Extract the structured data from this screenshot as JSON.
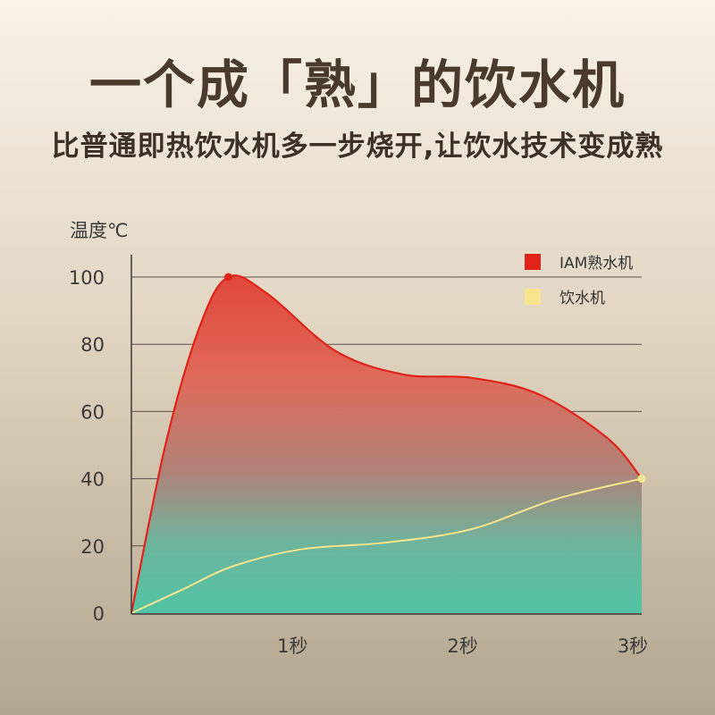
{
  "title": "一个成「熟」的饮水机",
  "subtitle": "比普通即热饮水机多一步烧开,让饮水技术变成熟",
  "chart_data": {
    "type": "area",
    "ylabel": "温度℃",
    "xlabel": "",
    "ylim": [
      0,
      100
    ],
    "y_ticks": [
      "0",
      "20",
      "40",
      "60",
      "80",
      "100"
    ],
    "x_ticks": [
      "1秒",
      "2秒",
      "3秒"
    ],
    "xlim": [
      0,
      3
    ],
    "grid": true,
    "legend_position": "top-right",
    "series": [
      {
        "name": "IAM熟水机",
        "color": "#e2231a",
        "x": [
          0,
          0.2,
          0.4,
          0.57,
          0.8,
          1.2,
          1.6,
          2.0,
          2.4,
          2.8,
          3.0
        ],
        "y": [
          0,
          50,
          85,
          100,
          95,
          78,
          71,
          70,
          65,
          52,
          40
        ]
      },
      {
        "name": "饮水机",
        "color": "#f6e58d",
        "x": [
          0,
          0.3,
          0.6,
          1.0,
          1.5,
          2.0,
          2.5,
          3.0
        ],
        "y": [
          0,
          7,
          14,
          19,
          21,
          25,
          34,
          40
        ]
      }
    ]
  }
}
